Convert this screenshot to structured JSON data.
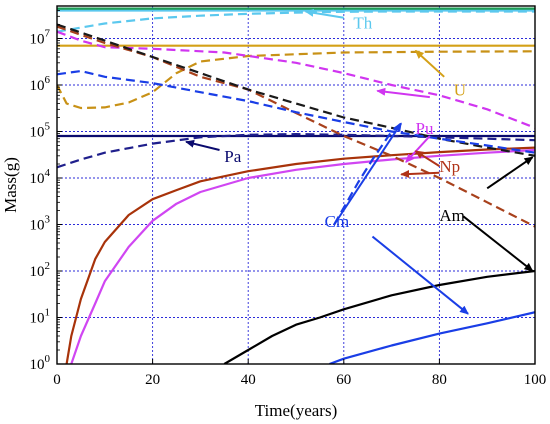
{
  "chart_data": {
    "type": "line",
    "title": "",
    "xlabel": "Time(years)",
    "ylabel": "Mass(g)",
    "xlim": [
      0,
      100
    ],
    "ylim": [
      1,
      50000000
    ],
    "yscale": "log",
    "grid": true,
    "x_ticks": [
      0,
      20,
      40,
      60,
      80,
      100
    ],
    "y_ticks": [
      {
        "value": 1,
        "base": "10",
        "exp": "0"
      },
      {
        "value": 10,
        "base": "10",
        "exp": "1"
      },
      {
        "value": 100,
        "base": "10",
        "exp": "2"
      },
      {
        "value": 1000,
        "base": "10",
        "exp": "3"
      },
      {
        "value": 10000,
        "base": "10",
        "exp": "4"
      },
      {
        "value": 100000,
        "base": "10",
        "exp": "5"
      },
      {
        "value": 1000000,
        "base": "10",
        "exp": "6"
      },
      {
        "value": 10000000,
        "base": "10",
        "exp": "7"
      }
    ],
    "series": [
      {
        "name": "Th",
        "color": "#5bc8ee",
        "dashed": false,
        "points": [
          [
            0,
            40000000
          ],
          [
            100,
            40000000
          ]
        ]
      },
      {
        "name": "Th",
        "color": "#1e9e55",
        "dashed": false,
        "points": [
          [
            0,
            44000000
          ],
          [
            100,
            44000000
          ]
        ]
      },
      {
        "name": "Th",
        "color": "#5bc8ee",
        "dashed": true,
        "points": [
          [
            0,
            14000000
          ],
          [
            10,
            21000000
          ],
          [
            20,
            27000000
          ],
          [
            30,
            31000000
          ],
          [
            40,
            34000000
          ],
          [
            50,
            36000000
          ],
          [
            60,
            37500000
          ],
          [
            70,
            38000000
          ],
          [
            80,
            38000000
          ],
          [
            100,
            38000000
          ]
        ]
      },
      {
        "name": "U",
        "color": "#d4a017",
        "dashed": false,
        "points": [
          [
            0,
            7000000
          ],
          [
            100,
            7000000
          ]
        ]
      },
      {
        "name": "U",
        "color": "#c89116",
        "dashed": true,
        "points": [
          [
            0,
            1000000
          ],
          [
            2,
            400000
          ],
          [
            5,
            320000
          ],
          [
            10,
            330000
          ],
          [
            15,
            420000
          ],
          [
            20,
            700000
          ],
          [
            25,
            1800000
          ],
          [
            30,
            3200000
          ],
          [
            40,
            4200000
          ],
          [
            60,
            5000000
          ],
          [
            80,
            5200000
          ],
          [
            100,
            5300000
          ]
        ]
      },
      {
        "name": "Pu",
        "color": "#d035f0",
        "dashed": true,
        "points": [
          [
            0,
            14000000
          ],
          [
            5,
            9000000
          ],
          [
            10,
            6500000
          ],
          [
            20,
            6000000
          ],
          [
            35,
            5000000
          ],
          [
            50,
            3000000
          ],
          [
            60,
            1800000
          ],
          [
            70,
            1000000
          ],
          [
            80,
            600000
          ],
          [
            90,
            300000
          ],
          [
            100,
            120000
          ]
        ]
      },
      {
        "name": "Pu",
        "color": "#d046f2",
        "dashed": false,
        "points": [
          [
            1,
            0.3
          ],
          [
            3,
            1
          ],
          [
            5,
            4
          ],
          [
            8,
            20
          ],
          [
            10,
            60
          ],
          [
            15,
            330
          ],
          [
            20,
            1200
          ],
          [
            25,
            2800
          ],
          [
            30,
            5000
          ],
          [
            40,
            10000
          ],
          [
            50,
            15000
          ],
          [
            60,
            20000
          ],
          [
            70,
            25000
          ],
          [
            80,
            30000
          ],
          [
            90,
            35000
          ],
          [
            100,
            40000
          ]
        ]
      },
      {
        "name": "Pa",
        "color": "#0a0a6e",
        "dashed": false,
        "points": [
          [
            0,
            80000
          ],
          [
            100,
            80000
          ]
        ]
      },
      {
        "name": "Pa",
        "color": "#1f1f8c",
        "dashed": true,
        "points": [
          [
            0,
            17000
          ],
          [
            5,
            25000
          ],
          [
            10,
            35000
          ],
          [
            20,
            55000
          ],
          [
            30,
            75000
          ],
          [
            40,
            85000
          ],
          [
            50,
            88000
          ],
          [
            60,
            85000
          ],
          [
            70,
            80000
          ],
          [
            80,
            75000
          ],
          [
            90,
            70000
          ],
          [
            100,
            65000
          ]
        ]
      },
      {
        "name": "Np",
        "color": "#a8330a",
        "dashed": false,
        "points": [
          [
            0.5,
            0.3
          ],
          [
            2,
            1
          ],
          [
            3,
            4
          ],
          [
            5,
            25
          ],
          [
            8,
            180
          ],
          [
            10,
            420
          ],
          [
            15,
            1600
          ],
          [
            20,
            3500
          ],
          [
            25,
            5500
          ],
          [
            30,
            8500
          ],
          [
            40,
            14000
          ],
          [
            50,
            20000
          ],
          [
            60,
            26000
          ],
          [
            70,
            31000
          ],
          [
            80,
            36000
          ],
          [
            90,
            41000
          ],
          [
            100,
            45000
          ]
        ]
      },
      {
        "name": "Np",
        "color": "#a8411c",
        "dashed": true,
        "points": [
          [
            0,
            18000000
          ],
          [
            10,
            8000000
          ],
          [
            20,
            4000000
          ],
          [
            30,
            1500000
          ],
          [
            40,
            800000
          ],
          [
            50,
            250000
          ],
          [
            60,
            80000
          ],
          [
            70,
            30000
          ],
          [
            80,
            10000
          ],
          [
            90,
            3000
          ],
          [
            100,
            900
          ]
        ]
      },
      {
        "name": "Am",
        "color": "#000000",
        "dashed": false,
        "points": [
          [
            35,
            1
          ],
          [
            40,
            2
          ],
          [
            45,
            4
          ],
          [
            50,
            7
          ],
          [
            55,
            10
          ],
          [
            60,
            15
          ],
          [
            70,
            30
          ],
          [
            80,
            50
          ],
          [
            90,
            75
          ],
          [
            100,
            100
          ]
        ]
      },
      {
        "name": "Am",
        "color": "#1a1a1a",
        "dashed": true,
        "points": [
          [
            0,
            20000000
          ],
          [
            10,
            9000000
          ],
          [
            20,
            4000000
          ],
          [
            30,
            1800000
          ],
          [
            40,
            800000
          ],
          [
            50,
            400000
          ],
          [
            60,
            200000
          ],
          [
            70,
            120000
          ],
          [
            80,
            70000
          ],
          [
            90,
            45000
          ],
          [
            100,
            30000
          ]
        ]
      },
      {
        "name": "Cm",
        "color": "#1a3ee6",
        "dashed": false,
        "points": [
          [
            57,
            1
          ],
          [
            60,
            1.3
          ],
          [
            70,
            2.5
          ],
          [
            80,
            4.5
          ],
          [
            90,
            7.5
          ],
          [
            100,
            13
          ]
        ]
      },
      {
        "name": "Cm",
        "color": "#1a3ee6",
        "dashed": true,
        "points": [
          [
            0,
            1700000
          ],
          [
            5,
            2000000
          ],
          [
            10,
            1500000
          ],
          [
            20,
            1100000
          ],
          [
            30,
            700000
          ],
          [
            40,
            450000
          ],
          [
            50,
            260000
          ],
          [
            60,
            160000
          ],
          [
            70,
            100000
          ],
          [
            80,
            70000
          ],
          [
            90,
            50000
          ],
          [
            100,
            35000
          ]
        ]
      },
      {
        "name": "Cm",
        "color": "#1a3ee6",
        "dashed": true,
        "points": [
          [
            58,
            1000
          ],
          [
            63,
            8000
          ],
          [
            66,
            25000
          ],
          [
            70,
            100000
          ],
          [
            72,
            150000
          ]
        ]
      }
    ],
    "annotations": [
      {
        "label": "Th",
        "color": "#5bc8ee",
        "text_at": [
          62,
          22000000
        ],
        "arrow_from": [
          60,
          28000000
        ],
        "arrow_to": [
          52,
          38000000
        ]
      },
      {
        "label": "U",
        "color": "#d4a017",
        "text_at": [
          83,
          800000
        ],
        "arrow_from": [
          81,
          1500000
        ],
        "arrow_to": [
          75,
          5500000
        ]
      },
      {
        "label": "Pu",
        "color": "#d035f0",
        "text_at": [
          75,
          120000
        ],
        "arrow_from": [
          78,
          80000
        ],
        "arrow_to": [
          73,
          22000
        ]
      },
      {
        "label": "Pu",
        "color": "#d035f0",
        "text_at": null,
        "arrow_from": [
          78,
          550000
        ],
        "arrow_to": [
          67,
          750000
        ]
      },
      {
        "label": "Pa",
        "color": "#0a0a6e",
        "text_at": [
          35,
          30000
        ],
        "arrow_from": [
          34,
          40000
        ],
        "arrow_to": [
          27,
          60000
        ]
      },
      {
        "label": "Np",
        "color": "#b03318",
        "text_at": [
          80,
          18000
        ],
        "arrow_from": [
          80,
          18000
        ],
        "arrow_to": [
          75,
          38000
        ]
      },
      {
        "label": "Np",
        "color": "#b03318",
        "text_at": null,
        "arrow_from": [
          80,
          13000
        ],
        "arrow_to": [
          72,
          12000
        ]
      },
      {
        "label": "Am",
        "color": "#000000",
        "text_at": [
          80,
          1600
        ],
        "arrow_from": [
          85,
          1500
        ],
        "arrow_to": [
          99.5,
          100
        ]
      },
      {
        "label": "Am",
        "color": "#000000",
        "text_at": null,
        "arrow_from": [
          90,
          6000
        ],
        "arrow_to": [
          99.5,
          28000
        ]
      },
      {
        "label": "Cm",
        "color": "#1a3ee6",
        "text_at": [
          56,
          1200
        ],
        "arrow_from": [
          66,
          550
        ],
        "arrow_to": [
          86,
          12
        ]
      },
      {
        "label": "Cm",
        "color": "#1a3ee6",
        "text_at": null,
        "arrow_from": [
          58,
          1000
        ],
        "arrow_to": [
          72,
          150000
        ]
      }
    ]
  }
}
